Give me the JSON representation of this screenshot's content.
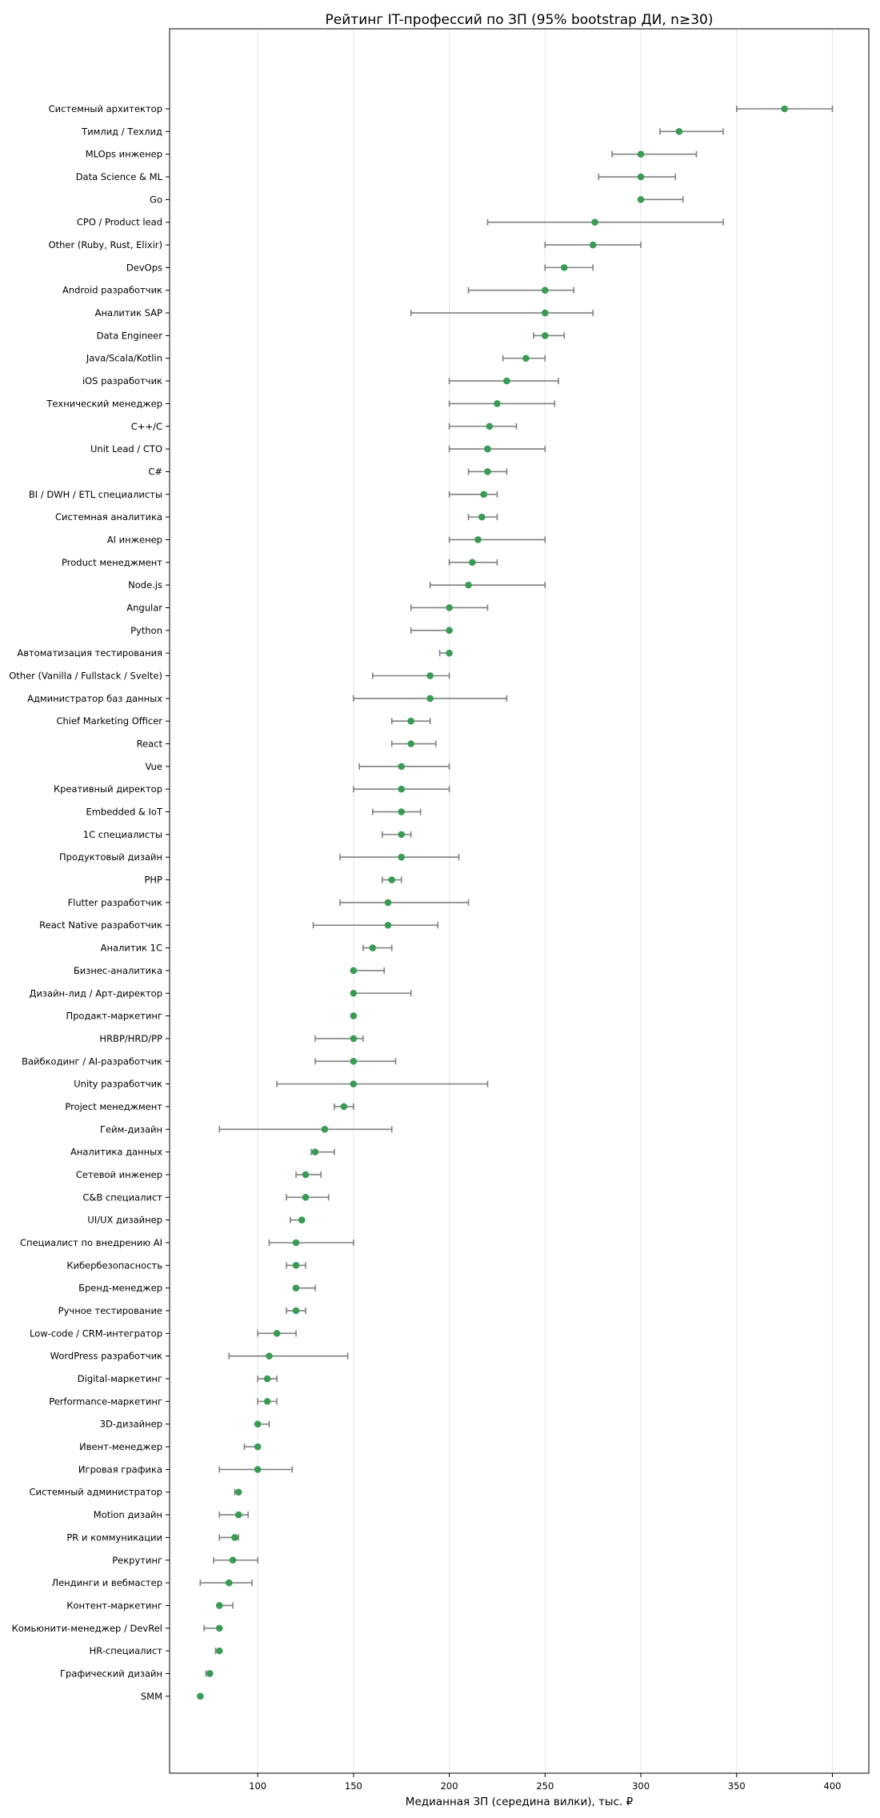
{
  "chart_data": {
    "type": "scatter",
    "title": "Рейтинг IT-профессий по ЗП (95% bootstrap ДИ, n≥30)",
    "xlabel": "Медианная ЗП (середина вилки), тыс. ₽",
    "ylabel": "",
    "xlim": [
      54,
      419
    ],
    "xticks": [
      "100",
      "150",
      "200",
      "250",
      "300",
      "350",
      "400"
    ],
    "grid": "x",
    "marker_color": "#3a9b55",
    "errorbar_color": "#808080",
    "points": [
      {
        "label": "Системный архитектор",
        "value": 375,
        "lo": 350,
        "hi": 400
      },
      {
        "label": "Тимлид / Техлид",
        "value": 320,
        "lo": 310,
        "hi": 343
      },
      {
        "label": "MLOps инженер",
        "value": 300,
        "lo": 285,
        "hi": 329
      },
      {
        "label": "Data Science & ML",
        "value": 300,
        "lo": 278,
        "hi": 318
      },
      {
        "label": "Go",
        "value": 300,
        "lo": 300,
        "hi": 322
      },
      {
        "label": "CPO / Product lead",
        "value": 276,
        "lo": 220,
        "hi": 343
      },
      {
        "label": "Other (Ruby, Rust, Elixir)",
        "value": 275,
        "lo": 250,
        "hi": 300
      },
      {
        "label": "DevOps",
        "value": 260,
        "lo": 250,
        "hi": 275
      },
      {
        "label": "Android разработчик",
        "value": 250,
        "lo": 210,
        "hi": 265
      },
      {
        "label": "Аналитик SAP",
        "value": 250,
        "lo": 180,
        "hi": 275
      },
      {
        "label": "Data Engineer",
        "value": 250,
        "lo": 244,
        "hi": 260
      },
      {
        "label": "Java/Scala/Kotlin",
        "value": 240,
        "lo": 228,
        "hi": 250
      },
      {
        "label": "iOS разработчик",
        "value": 230,
        "lo": 200,
        "hi": 257
      },
      {
        "label": "Технический менеджер",
        "value": 225,
        "lo": 200,
        "hi": 255
      },
      {
        "label": "C++/C",
        "value": 221,
        "lo": 200,
        "hi": 235
      },
      {
        "label": "Unit Lead / CTO",
        "value": 220,
        "lo": 200,
        "hi": 250
      },
      {
        "label": "C#",
        "value": 220,
        "lo": 210,
        "hi": 230
      },
      {
        "label": "BI / DWH / ETL специалисты",
        "value": 218,
        "lo": 200,
        "hi": 225
      },
      {
        "label": "Системная аналитика",
        "value": 217,
        "lo": 210,
        "hi": 225
      },
      {
        "label": "AI инженер",
        "value": 215,
        "lo": 200,
        "hi": 250
      },
      {
        "label": "Product менеджмент",
        "value": 212,
        "lo": 200,
        "hi": 225
      },
      {
        "label": "Node.js",
        "value": 210,
        "lo": 190,
        "hi": 250
      },
      {
        "label": "Angular",
        "value": 200,
        "lo": 180,
        "hi": 220
      },
      {
        "label": "Python",
        "value": 200,
        "lo": 180,
        "hi": 200
      },
      {
        "label": "Автоматизация тестирования",
        "value": 200,
        "lo": 195,
        "hi": 200
      },
      {
        "label": "Other (Vanilla / Fullstack / Svelte)",
        "value": 190,
        "lo": 160,
        "hi": 200
      },
      {
        "label": "Администратор баз данных",
        "value": 190,
        "lo": 150,
        "hi": 230
      },
      {
        "label": "Chief Marketing Officer",
        "value": 180,
        "lo": 170,
        "hi": 190
      },
      {
        "label": "React",
        "value": 180,
        "lo": 170,
        "hi": 193
      },
      {
        "label": "Vue",
        "value": 175,
        "lo": 153,
        "hi": 200
      },
      {
        "label": "Креативный директор",
        "value": 175,
        "lo": 150,
        "hi": 200
      },
      {
        "label": "Embedded & IoT",
        "value": 175,
        "lo": 160,
        "hi": 185
      },
      {
        "label": "1С специалисты",
        "value": 175,
        "lo": 165,
        "hi": 180
      },
      {
        "label": "Продуктовый дизайн",
        "value": 175,
        "lo": 143,
        "hi": 205
      },
      {
        "label": "PHP",
        "value": 170,
        "lo": 165,
        "hi": 175
      },
      {
        "label": "Flutter разработчик",
        "value": 168,
        "lo": 143,
        "hi": 210
      },
      {
        "label": "React Native разработчик",
        "value": 168,
        "lo": 129,
        "hi": 194
      },
      {
        "label": "Аналитик 1С",
        "value": 160,
        "lo": 155,
        "hi": 170
      },
      {
        "label": "Бизнес-аналитика",
        "value": 150,
        "lo": 150,
        "hi": 166
      },
      {
        "label": "Дизайн-лид / Арт-директор",
        "value": 150,
        "lo": 150,
        "hi": 180
      },
      {
        "label": "Продакт-маркетинг",
        "value": 150,
        "lo": 150,
        "hi": 150
      },
      {
        "label": "HRBP/HRD/PP",
        "value": 150,
        "lo": 130,
        "hi": 155
      },
      {
        "label": "Вайбкодинг / AI-разработчик",
        "value": 150,
        "lo": 130,
        "hi": 172
      },
      {
        "label": "Unity разработчик",
        "value": 150,
        "lo": 110,
        "hi": 220
      },
      {
        "label": "Project менеджмент",
        "value": 145,
        "lo": 140,
        "hi": 150
      },
      {
        "label": "Гейм-дизайн",
        "value": 135,
        "lo": 80,
        "hi": 170
      },
      {
        "label": "Аналитика данных",
        "value": 130,
        "lo": 128,
        "hi": 140
      },
      {
        "label": "Сетевой инженер",
        "value": 125,
        "lo": 120,
        "hi": 133
      },
      {
        "label": "C&B специалист",
        "value": 125,
        "lo": 115,
        "hi": 137
      },
      {
        "label": "UI/UX дизайнер",
        "value": 123,
        "lo": 117,
        "hi": 123
      },
      {
        "label": "Специалист по внедрению AI",
        "value": 120,
        "lo": 106,
        "hi": 150
      },
      {
        "label": "Кибербезопасность",
        "value": 120,
        "lo": 115,
        "hi": 125
      },
      {
        "label": "Бренд-менеджер",
        "value": 120,
        "lo": 120,
        "hi": 130
      },
      {
        "label": "Ручное тестирование",
        "value": 120,
        "lo": 115,
        "hi": 125
      },
      {
        "label": "Low-code / CRM-интегратор",
        "value": 110,
        "lo": 100,
        "hi": 120
      },
      {
        "label": "WordPress разработчик",
        "value": 106,
        "lo": 85,
        "hi": 147
      },
      {
        "label": "Digital-маркетинг",
        "value": 105,
        "lo": 100,
        "hi": 110
      },
      {
        "label": "Performance-маркетинг",
        "value": 105,
        "lo": 100,
        "hi": 110
      },
      {
        "label": "3D-дизайнер",
        "value": 100,
        "lo": 100,
        "hi": 106
      },
      {
        "label": "Ивент-менеджер",
        "value": 100,
        "lo": 93,
        "hi": 100
      },
      {
        "label": "Игровая графика",
        "value": 100,
        "lo": 80,
        "hi": 118
      },
      {
        "label": "Системный администратор",
        "value": 90,
        "lo": 88,
        "hi": 90
      },
      {
        "label": "Motion дизайн",
        "value": 90,
        "lo": 80,
        "hi": 95
      },
      {
        "label": "PR и коммуникации",
        "value": 88,
        "lo": 80,
        "hi": 90
      },
      {
        "label": "Рекрутинг",
        "value": 87,
        "lo": 77,
        "hi": 100
      },
      {
        "label": "Лендинги и вебмастер",
        "value": 85,
        "lo": 70,
        "hi": 97
      },
      {
        "label": "Контент-маркетинг",
        "value": 80,
        "lo": 80,
        "hi": 87
      },
      {
        "label": "Комьюнити-менеджер / DevRel",
        "value": 80,
        "lo": 72,
        "hi": 80
      },
      {
        "label": "HR-специалист",
        "value": 80,
        "lo": 78,
        "hi": 80
      },
      {
        "label": "Графический дизайн",
        "value": 75,
        "lo": 73,
        "hi": 75
      },
      {
        "label": "SMM",
        "value": 70,
        "lo": 70,
        "hi": 70
      }
    ]
  }
}
